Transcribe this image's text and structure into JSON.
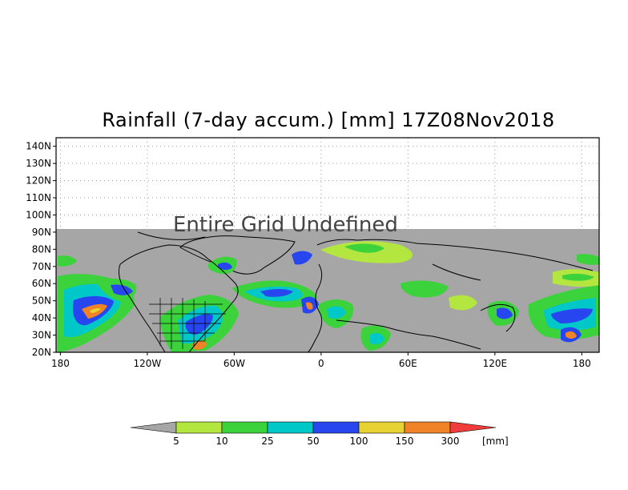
{
  "title": "Rainfall (7-day accum.) [mm] 17Z08Nov2018",
  "map": {
    "notice": "Entire Grid Undefined",
    "lat_labels": [
      "140N",
      "130N",
      "120N",
      "110N",
      "100N",
      "90N",
      "80N",
      "70N",
      "60N",
      "50N",
      "40N",
      "30N",
      "20N"
    ],
    "lon_labels": [
      "180",
      "120W",
      "60W",
      "0",
      "60E",
      "120E",
      "180"
    ],
    "lat_range": [
      20,
      145
    ],
    "lon_range": [
      -183,
      192
    ],
    "undefined_above_lat": 90,
    "background_color": "#a6a6a6"
  },
  "colorbar": {
    "unit": "[mm]",
    "bins": [
      {
        "label": "5",
        "color": "#b4e640"
      },
      {
        "label": "10",
        "color": "#3cd23c"
      },
      {
        "label": "25",
        "color": "#00c8c8"
      },
      {
        "label": "50",
        "color": "#2846f0"
      },
      {
        "label": "100",
        "color": "#e6d232"
      },
      {
        "label": "150",
        "color": "#f08228"
      },
      {
        "label": "300",
        "color": "#f03c3c"
      }
    ],
    "under_color": "#a6a6a6"
  }
}
